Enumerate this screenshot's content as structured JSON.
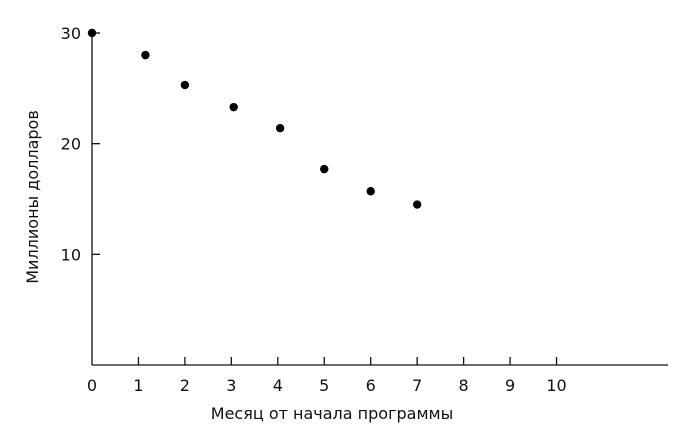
{
  "chart_data": {
    "type": "scatter",
    "title": "",
    "xlabel": "Месяц от начала программы",
    "ylabel": "Миллионы долларов",
    "xlim": [
      0,
      12.4
    ],
    "ylim": [
      0,
      30
    ],
    "xticks": [
      0,
      1,
      2,
      3,
      4,
      5,
      6,
      7,
      8,
      9,
      10
    ],
    "yticks": [
      10,
      20,
      30
    ],
    "grid": false,
    "legend": "none",
    "colors": {
      "axis": "#111111",
      "point": "#000000"
    },
    "series": [
      {
        "x": [
          0,
          1.15,
          2,
          3.05,
          4.05,
          5,
          6,
          7
        ],
        "y": [
          30,
          28,
          25.3,
          23.3,
          21.4,
          17.7,
          15.7,
          14.5
        ]
      }
    ]
  }
}
